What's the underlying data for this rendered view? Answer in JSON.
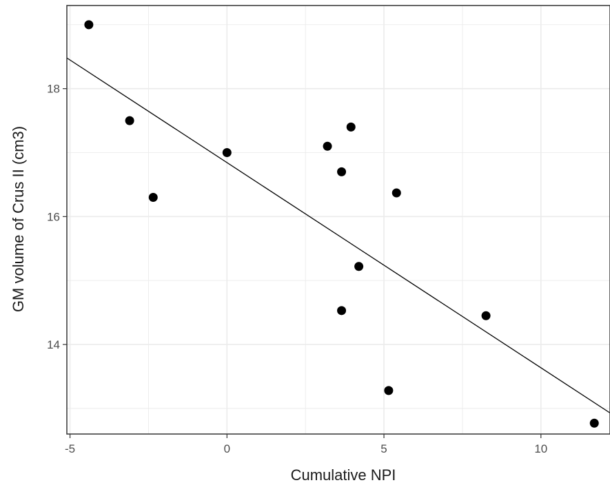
{
  "chart_data": {
    "type": "scatter",
    "title": "",
    "xlabel": "Cumulative NPI",
    "ylabel": "GM volume of Crus II (cm3)",
    "xlim": [
      -5.1,
      12.2
    ],
    "ylim": [
      12.6,
      19.3
    ],
    "x_ticks": [
      -5,
      0,
      5,
      10
    ],
    "x_tick_labels": [
      "-5",
      "0",
      "5",
      "10"
    ],
    "y_ticks": [
      14,
      16,
      18
    ],
    "y_tick_labels": [
      "14",
      "16",
      "18"
    ],
    "grid": true,
    "legend": "none",
    "points": [
      {
        "x": -4.4,
        "y": 19.0
      },
      {
        "x": -3.1,
        "y": 17.5
      },
      {
        "x": -2.35,
        "y": 16.3
      },
      {
        "x": 0.0,
        "y": 17.0
      },
      {
        "x": 3.2,
        "y": 17.1
      },
      {
        "x": 3.95,
        "y": 17.4
      },
      {
        "x": 3.65,
        "y": 16.7
      },
      {
        "x": 5.4,
        "y": 16.37
      },
      {
        "x": 4.2,
        "y": 15.22
      },
      {
        "x": 3.65,
        "y": 14.53
      },
      {
        "x": 8.25,
        "y": 14.45
      },
      {
        "x": 5.15,
        "y": 13.28
      },
      {
        "x": 11.7,
        "y": 12.77
      }
    ],
    "fit_line": {
      "x": [
        -5.1,
        12.2
      ],
      "y": [
        18.48,
        12.93
      ]
    },
    "colors": {
      "points": "#000000",
      "line": "#000000",
      "grid": "#ebebeb",
      "border": "#333333"
    }
  }
}
